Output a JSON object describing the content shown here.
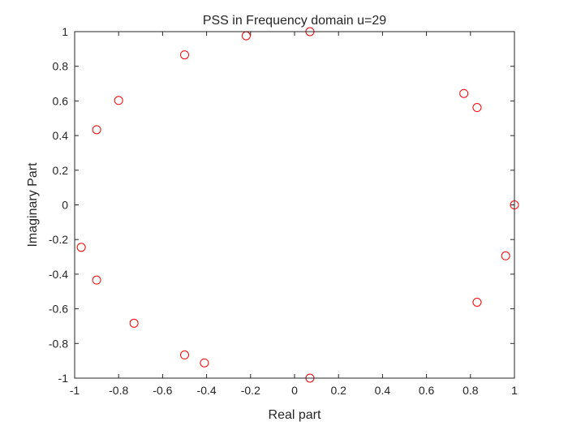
{
  "chart_data": {
    "type": "scatter",
    "title": "PSS in Frequency domain u=29",
    "xlabel": "Real part",
    "ylabel": "Imaginary Part",
    "xlim": [
      -1,
      1
    ],
    "ylim": [
      -1,
      1
    ],
    "grid": false,
    "marker": "circle-open",
    "marker_color": "#ff0000",
    "x_ticks": [
      -1,
      -0.8,
      -0.6,
      -0.4,
      -0.2,
      0,
      0.2,
      0.4,
      0.6,
      0.8,
      1
    ],
    "x_tick_labels": [
      "-1",
      "-0.8",
      "-0.6",
      "-0.4",
      "-0.2",
      "0",
      "0.2",
      "0.4",
      "0.6",
      "0.8",
      "1"
    ],
    "y_ticks": [
      1,
      0.8,
      0.6,
      0.4,
      0.2,
      0,
      -0.2,
      -0.4,
      -0.6,
      -0.8,
      -1
    ],
    "y_tick_labels": [
      "1",
      "0.8",
      "0.6",
      "0.4",
      "0.2",
      "0",
      "-0.2",
      "-0.4",
      "-0.6",
      "-0.8",
      "-1"
    ],
    "points": [
      {
        "x": 0.07,
        "y": 1.0
      },
      {
        "x": -0.22,
        "y": 0.976
      },
      {
        "x": -0.5,
        "y": 0.866
      },
      {
        "x": -0.8,
        "y": 0.603
      },
      {
        "x": -0.9,
        "y": 0.434
      },
      {
        "x": -0.97,
        "y": -0.245
      },
      {
        "x": -0.9,
        "y": -0.434
      },
      {
        "x": -0.73,
        "y": -0.683
      },
      {
        "x": -0.5,
        "y": -0.866
      },
      {
        "x": -0.41,
        "y": -0.912
      },
      {
        "x": 0.07,
        "y": -1.0
      },
      {
        "x": 0.77,
        "y": 0.643
      },
      {
        "x": 0.83,
        "y": 0.562
      },
      {
        "x": 1.0,
        "y": 0.0
      },
      {
        "x": 0.96,
        "y": -0.294
      },
      {
        "x": 0.83,
        "y": -0.562
      }
    ]
  }
}
